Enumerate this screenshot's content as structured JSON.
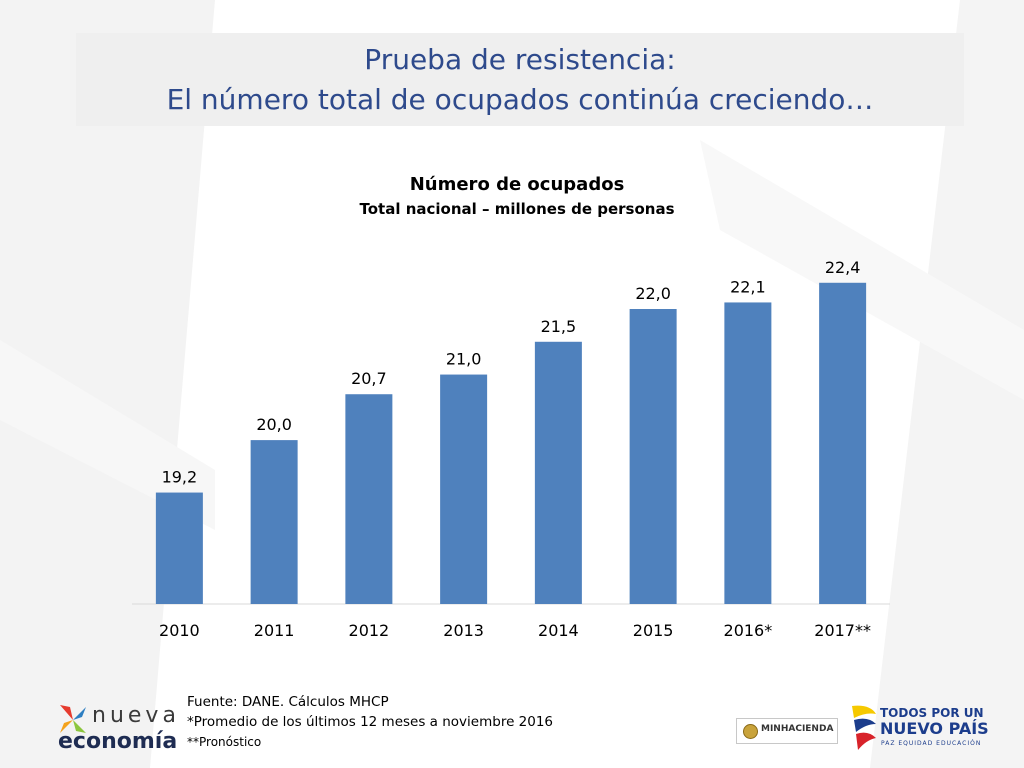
{
  "slide": {
    "title_line1": "Prueba de resistencia:",
    "title_line2": "El número total de ocupados continúa creciendo…"
  },
  "chart_data": {
    "type": "bar",
    "title": "Número de ocupados",
    "subtitle": "Total nacional – millones de personas",
    "categories": [
      "2010",
      "2011",
      "2012",
      "2013",
      "2014",
      "2015",
      "2016*",
      "2017**"
    ],
    "values": [
      19.2,
      20.0,
      20.7,
      21.0,
      21.5,
      22.0,
      22.1,
      22.4
    ],
    "data_labels": [
      "19,2",
      "20,0",
      "20,7",
      "21,0",
      "21,5",
      "22,0",
      "22,1",
      "22,4"
    ],
    "ylim": [
      17.5,
      22.9
    ],
    "grid": false,
    "legend": "none",
    "bar_color": "#4f81bd"
  },
  "footer": {
    "source": "Fuente:  DANE. Cálculos MHCP",
    "note1": "*Promedio de los últimos 12 meses a noviembre 2016",
    "note2": "**Pronóstico"
  },
  "logos": {
    "nueva_economia": {
      "word1": "nueva",
      "word2": "economía"
    },
    "minhacienda": {
      "text": "MINHACIENDA"
    },
    "todos_por_un_nuevo_pais": {
      "line1": "TODOS POR UN",
      "line2": "NUEVO PAÍS",
      "line3": "PAZ  EQUIDAD  EDUCACIÓN"
    }
  }
}
